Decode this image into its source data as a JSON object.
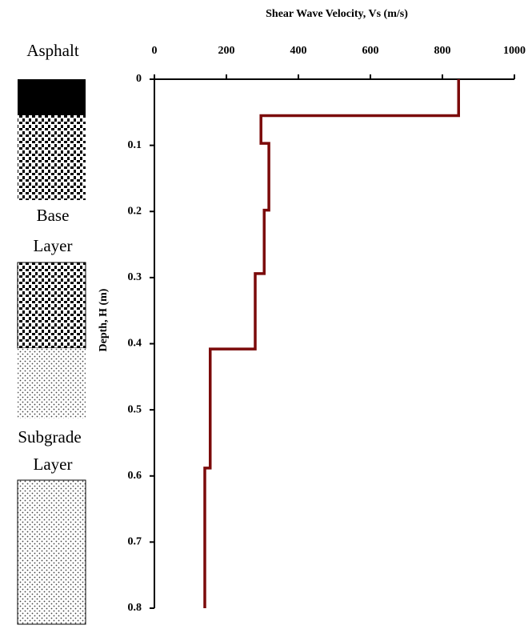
{
  "chart_data": {
    "type": "line",
    "title": "Shear Wave Velocity, Vs (m/s)",
    "y_label": "Depth, H (m)",
    "annotations": [
      "Asphalt",
      "Base",
      "Layer",
      "Subgrade",
      "Layer"
    ],
    "color": "#7b0a0a",
    "x": [
      845,
      845,
      296,
      296,
      318,
      318,
      305,
      305,
      280,
      280,
      155,
      155,
      140,
      140
    ],
    "values": [
      0,
      0.055,
      0.055,
      0.097,
      0.097,
      0.198,
      0.198,
      0.294,
      0.294,
      0.408,
      0.408,
      0.588,
      0.588,
      0.8
    ],
    "xlim": [
      0,
      1000
    ],
    "xticks": [
      0,
      200,
      400,
      600,
      800,
      1000
    ],
    "ylim": [
      0,
      0.8
    ],
    "yticks": [
      0,
      0.1,
      0.2,
      0.3,
      0.4,
      0.5,
      0.6,
      0.7,
      0.8
    ],
    "y_inverted": true,
    "x_axis_top": true
  }
}
